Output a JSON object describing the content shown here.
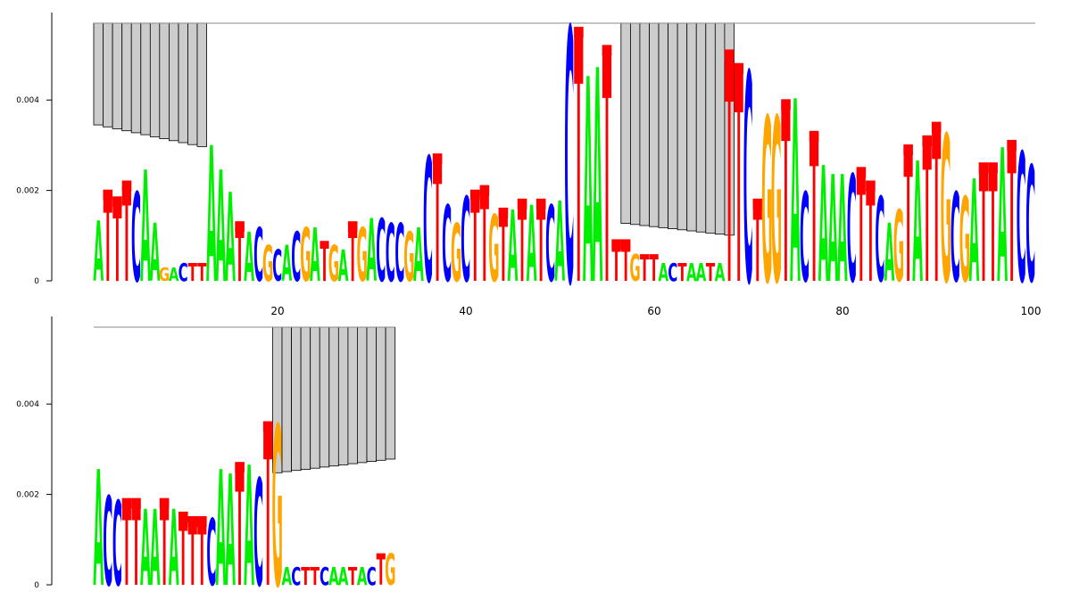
{
  "chart_data": {
    "type": "sequence-logo",
    "title": "",
    "xlabel": "",
    "ylabel": "",
    "ylim": [
      0,
      0.0057
    ],
    "y_ticks": [
      0,
      0.002,
      0.004
    ],
    "y_tick_labels": [
      "0",
      "0.002",
      "0.004"
    ],
    "x_ticks": [
      20,
      40,
      60,
      80,
      100
    ],
    "x_tick_labels": [
      "20",
      "40",
      "60",
      "80",
      "100"
    ],
    "grid": false,
    "legend": "none",
    "colors": {
      "A": "#00ee00",
      "C": "#0000ff",
      "G": "#ffa500",
      "T": "#ff0000",
      "gap": "#cccccc",
      "total_marker": "#ff0000",
      "axis": "#000000"
    },
    "rows": [
      {
        "name": "row-1",
        "start_position": 1,
        "end_position": 100,
        "sequence": "ATTTCAAGACTTAGATAACAGCACAAACGCAGATGCAGCCCGAACTCGGATATGATAACAAACATTATGTTACTAATAAAGCGGATACAAGACACAGAATGCATGCA",
        "gap_blocks": [
          {
            "from": 1,
            "to": 12,
            "top": 0.0057,
            "bottom_start": 0.00345,
            "bottom_end": 0.00297
          },
          {
            "from": 57,
            "to": 68,
            "top": 0.0057,
            "bottom_start": 0.00127,
            "bottom_end": 0.00101
          }
        ],
        "columns": [
          {
            "pos": 1,
            "letter": "A",
            "height": 0.00135,
            "total": 0
          },
          {
            "pos": 2,
            "letter": "T",
            "height": 0.0019,
            "total": 0.0019
          },
          {
            "pos": 3,
            "letter": "T",
            "height": 0.00175,
            "total": 0.00175
          },
          {
            "pos": 4,
            "letter": "T",
            "height": 0.0021,
            "total": 0.0021
          },
          {
            "pos": 5,
            "letter": "C",
            "height": 0.002,
            "total": 0
          },
          {
            "pos": 6,
            "letter": "A",
            "height": 0.0025,
            "total": 0
          },
          {
            "pos": 7,
            "letter": "A",
            "height": 0.0013,
            "total": 0
          },
          {
            "pos": 8,
            "letter": "G",
            "height": 0.0003,
            "total": 0
          },
          {
            "pos": 9,
            "letter": "A",
            "height": 0.0003,
            "total": 0
          },
          {
            "pos": 10,
            "letter": "C",
            "height": 0.0004,
            "total": 0
          },
          {
            "pos": 11,
            "letter": "T",
            "height": 0.0004,
            "total": 0
          },
          {
            "pos": 12,
            "letter": "T",
            "height": 0.0004,
            "total": 0
          },
          {
            "pos": 13,
            "letter": "A",
            "height": 0.00305,
            "total": 0
          },
          {
            "pos": 14,
            "letter": "A",
            "height": 0.0025,
            "total": 0
          },
          {
            "pos": 15,
            "letter": "A",
            "height": 0.002,
            "total": 0
          },
          {
            "pos": 16,
            "letter": "T",
            "height": 0.0012,
            "total": 0.0012
          },
          {
            "pos": 17,
            "letter": "A",
            "height": 0.0011,
            "total": 0
          },
          {
            "pos": 18,
            "letter": "C",
            "height": 0.0012,
            "total": 0
          },
          {
            "pos": 19,
            "letter": "G",
            "height": 0.0008,
            "total": 0
          },
          {
            "pos": 20,
            "letter": "C",
            "height": 0.0007,
            "total": 0
          },
          {
            "pos": 21,
            "letter": "A",
            "height": 0.0008,
            "total": 0
          },
          {
            "pos": 22,
            "letter": "C",
            "height": 0.0011,
            "total": 0
          },
          {
            "pos": 23,
            "letter": "G",
            "height": 0.0012,
            "total": 0
          },
          {
            "pos": 24,
            "letter": "A",
            "height": 0.0012,
            "total": 0
          },
          {
            "pos": 25,
            "letter": "T",
            "height": 0.0009,
            "total": 0
          },
          {
            "pos": 26,
            "letter": "G",
            "height": 0.0008,
            "total": 0
          },
          {
            "pos": 27,
            "letter": "A",
            "height": 0.0007,
            "total": 0
          },
          {
            "pos": 28,
            "letter": "T",
            "height": 0.0012,
            "total": 0.0012
          },
          {
            "pos": 29,
            "letter": "G",
            "height": 0.0012,
            "total": 0
          },
          {
            "pos": 30,
            "letter": "A",
            "height": 0.0014,
            "total": 0
          },
          {
            "pos": 31,
            "letter": "C",
            "height": 0.0014,
            "total": 0
          },
          {
            "pos": 32,
            "letter": "C",
            "height": 0.0013,
            "total": 0
          },
          {
            "pos": 33,
            "letter": "C",
            "height": 0.0013,
            "total": 0
          },
          {
            "pos": 34,
            "letter": "G",
            "height": 0.0011,
            "total": 0
          },
          {
            "pos": 35,
            "letter": "A",
            "height": 0.0012,
            "total": 0
          },
          {
            "pos": 36,
            "letter": "C",
            "height": 0.0028,
            "total": 0
          },
          {
            "pos": 37,
            "letter": "T",
            "height": 0.0027,
            "total": 0.0027
          },
          {
            "pos": 38,
            "letter": "C",
            "height": 0.0017,
            "total": 0
          },
          {
            "pos": 39,
            "letter": "G",
            "height": 0.0013,
            "total": 0
          },
          {
            "pos": 40,
            "letter": "C",
            "height": 0.0019,
            "total": 0
          },
          {
            "pos": 41,
            "letter": "T",
            "height": 0.0019,
            "total": 0.0019
          },
          {
            "pos": 42,
            "letter": "T",
            "height": 0.002,
            "total": 0.002
          },
          {
            "pos": 43,
            "letter": "G",
            "height": 0.0015,
            "total": 0
          },
          {
            "pos": 44,
            "letter": "T",
            "height": 0.0015,
            "total": 0.0015
          },
          {
            "pos": 45,
            "letter": "A",
            "height": 0.0016,
            "total": 0
          },
          {
            "pos": 46,
            "letter": "T",
            "height": 0.0017,
            "total": 0.0017
          },
          {
            "pos": 47,
            "letter": "A",
            "height": 0.0017,
            "total": 0
          },
          {
            "pos": 48,
            "letter": "T",
            "height": 0.0017,
            "total": 0.0017
          },
          {
            "pos": 49,
            "letter": "C",
            "height": 0.0017,
            "total": 0
          },
          {
            "pos": 50,
            "letter": "A",
            "height": 0.0018,
            "total": 0
          },
          {
            "pos": 51,
            "letter": "C",
            "height": 0.0057,
            "total": 0
          },
          {
            "pos": 52,
            "letter": "T",
            "height": 0.0055,
            "total": 0.0055
          },
          {
            "pos": 53,
            "letter": "A",
            "height": 0.0046,
            "total": 0
          },
          {
            "pos": 54,
            "letter": "A",
            "height": 0.0048,
            "total": 0
          },
          {
            "pos": 55,
            "letter": "T",
            "height": 0.0051,
            "total": 0.0051
          },
          {
            "pos": 56,
            "letter": "T",
            "height": 0.0008,
            "total": 0.0008
          },
          {
            "pos": 57,
            "letter": "T",
            "height": 0.0008,
            "total": 0.0008
          },
          {
            "pos": 58,
            "letter": "G",
            "height": 0.0006,
            "total": 0
          },
          {
            "pos": 59,
            "letter": "T",
            "height": 0.0006,
            "total": 0
          },
          {
            "pos": 60,
            "letter": "T",
            "height": 0.0006,
            "total": 0
          },
          {
            "pos": 61,
            "letter": "A",
            "height": 0.0004,
            "total": 0
          },
          {
            "pos": 62,
            "letter": "C",
            "height": 0.0004,
            "total": 0
          },
          {
            "pos": 63,
            "letter": "T",
            "height": 0.0004,
            "total": 0
          },
          {
            "pos": 64,
            "letter": "A",
            "height": 0.0004,
            "total": 0
          },
          {
            "pos": 65,
            "letter": "A",
            "height": 0.0004,
            "total": 0
          },
          {
            "pos": 66,
            "letter": "T",
            "height": 0.0004,
            "total": 0
          },
          {
            "pos": 67,
            "letter": "A",
            "height": 0.0004,
            "total": 0
          },
          {
            "pos": 68,
            "letter": "T",
            "height": 0.005,
            "total": 0.005
          },
          {
            "pos": 69,
            "letter": "T",
            "height": 0.0047,
            "total": 0.0047
          },
          {
            "pos": 70,
            "letter": "C",
            "height": 0.0047,
            "total": 0
          },
          {
            "pos": 71,
            "letter": "T",
            "height": 0.0017,
            "total": 0.0017
          },
          {
            "pos": 72,
            "letter": "G",
            "height": 0.0037,
            "total": 0
          },
          {
            "pos": 73,
            "letter": "G",
            "height": 0.0037,
            "total": 0
          },
          {
            "pos": 74,
            "letter": "T",
            "height": 0.0039,
            "total": 0.0039
          },
          {
            "pos": 75,
            "letter": "A",
            "height": 0.0041,
            "total": 0
          },
          {
            "pos": 76,
            "letter": "C",
            "height": 0.002,
            "total": 0
          },
          {
            "pos": 77,
            "letter": "T",
            "height": 0.0032,
            "total": 0.0032
          },
          {
            "pos": 78,
            "letter": "A",
            "height": 0.0026,
            "total": 0
          },
          {
            "pos": 79,
            "letter": "A",
            "height": 0.0024,
            "total": 0
          },
          {
            "pos": 80,
            "letter": "A",
            "height": 0.0024,
            "total": 0
          },
          {
            "pos": 81,
            "letter": "C",
            "height": 0.0024,
            "total": 0
          },
          {
            "pos": 82,
            "letter": "T",
            "height": 0.0024,
            "total": 0.0024
          },
          {
            "pos": 83,
            "letter": "T",
            "height": 0.0021,
            "total": 0.0021
          },
          {
            "pos": 84,
            "letter": "C",
            "height": 0.0019,
            "total": 0
          },
          {
            "pos": 85,
            "letter": "A",
            "height": 0.0013,
            "total": 0
          },
          {
            "pos": 86,
            "letter": "G",
            "height": 0.0016,
            "total": 0
          },
          {
            "pos": 87,
            "letter": "T",
            "height": 0.0029,
            "total": 0.0029
          },
          {
            "pos": 88,
            "letter": "A",
            "height": 0.0027,
            "total": 0
          },
          {
            "pos": 89,
            "letter": "T",
            "height": 0.0031,
            "total": 0.0031
          },
          {
            "pos": 90,
            "letter": "T",
            "height": 0.0034,
            "total": 0.0034
          },
          {
            "pos": 91,
            "letter": "G",
            "height": 0.0033,
            "total": 0
          },
          {
            "pos": 92,
            "letter": "C",
            "height": 0.002,
            "total": 0
          },
          {
            "pos": 93,
            "letter": "G",
            "height": 0.0019,
            "total": 0
          },
          {
            "pos": 94,
            "letter": "A",
            "height": 0.0023,
            "total": 0
          },
          {
            "pos": 95,
            "letter": "T",
            "height": 0.0025,
            "total": 0.0025
          },
          {
            "pos": 96,
            "letter": "T",
            "height": 0.0025,
            "total": 0.0025
          },
          {
            "pos": 97,
            "letter": "A",
            "height": 0.003,
            "total": 0
          },
          {
            "pos": 98,
            "letter": "T",
            "height": 0.003,
            "total": 0.003
          },
          {
            "pos": 99,
            "letter": "C",
            "height": 0.0029,
            "total": 0
          },
          {
            "pos": 100,
            "letter": "C",
            "height": 0.0026,
            "total": 0
          }
        ]
      },
      {
        "name": "row-2",
        "start_position": 101,
        "end_position": 132,
        "sequence": "ACCTTAAAACTTTTCAAAACGATACTTCAATACTG",
        "gap_blocks": [
          {
            "from": 120,
            "to": 132,
            "top": 0.0057,
            "bottom_start": 0.00248,
            "bottom_end": 0.00278
          }
        ],
        "columns": [
          {
            "pos": 101,
            "letter": "A",
            "height": 0.0026,
            "total": 0
          },
          {
            "pos": 102,
            "letter": "C",
            "height": 0.002,
            "total": 0
          },
          {
            "pos": 103,
            "letter": "C",
            "height": 0.0019,
            "total": 0
          },
          {
            "pos": 104,
            "letter": "T",
            "height": 0.0018,
            "total": 0.0018
          },
          {
            "pos": 105,
            "letter": "T",
            "height": 0.0018,
            "total": 0.0018
          },
          {
            "pos": 106,
            "letter": "A",
            "height": 0.0017,
            "total": 0
          },
          {
            "pos": 107,
            "letter": "A",
            "height": 0.0017,
            "total": 0
          },
          {
            "pos": 108,
            "letter": "T",
            "height": 0.0018,
            "total": 0.0018
          },
          {
            "pos": 109,
            "letter": "A",
            "height": 0.0017,
            "total": 0
          },
          {
            "pos": 110,
            "letter": "T",
            "height": 0.0015,
            "total": 0.0015
          },
          {
            "pos": 111,
            "letter": "T",
            "height": 0.0014,
            "total": 0.0014
          },
          {
            "pos": 112,
            "letter": "T",
            "height": 0.0014,
            "total": 0.0014
          },
          {
            "pos": 113,
            "letter": "C",
            "height": 0.0015,
            "total": 0
          },
          {
            "pos": 114,
            "letter": "A",
            "height": 0.0026,
            "total": 0
          },
          {
            "pos": 115,
            "letter": "A",
            "height": 0.0025,
            "total": 0
          },
          {
            "pos": 116,
            "letter": "T",
            "height": 0.0026,
            "total": 0.0026
          },
          {
            "pos": 117,
            "letter": "A",
            "height": 0.0027,
            "total": 0
          },
          {
            "pos": 118,
            "letter": "C",
            "height": 0.0024,
            "total": 0
          },
          {
            "pos": 119,
            "letter": "T",
            "height": 0.0035,
            "total": 0.0035
          },
          {
            "pos": 120,
            "letter": "G",
            "height": 0.0036,
            "total": 0
          },
          {
            "pos": 121,
            "letter": "A",
            "height": 0.0004,
            "total": 0
          },
          {
            "pos": 122,
            "letter": "C",
            "height": 0.0004,
            "total": 0
          },
          {
            "pos": 123,
            "letter": "T",
            "height": 0.0004,
            "total": 0
          },
          {
            "pos": 124,
            "letter": "T",
            "height": 0.0004,
            "total": 0
          },
          {
            "pos": 125,
            "letter": "C",
            "height": 0.0004,
            "total": 0
          },
          {
            "pos": 126,
            "letter": "A",
            "height": 0.0004,
            "total": 0
          },
          {
            "pos": 127,
            "letter": "A",
            "height": 0.0004,
            "total": 0
          },
          {
            "pos": 128,
            "letter": "T",
            "height": 0.0004,
            "total": 0
          },
          {
            "pos": 129,
            "letter": "A",
            "height": 0.0004,
            "total": 0
          },
          {
            "pos": 130,
            "letter": "C",
            "height": 0.0004,
            "total": 0
          },
          {
            "pos": 131,
            "letter": "T",
            "height": 0.0007,
            "total": 0
          },
          {
            "pos": 132,
            "letter": "G",
            "height": 0.0007,
            "total": 0
          }
        ]
      }
    ]
  }
}
